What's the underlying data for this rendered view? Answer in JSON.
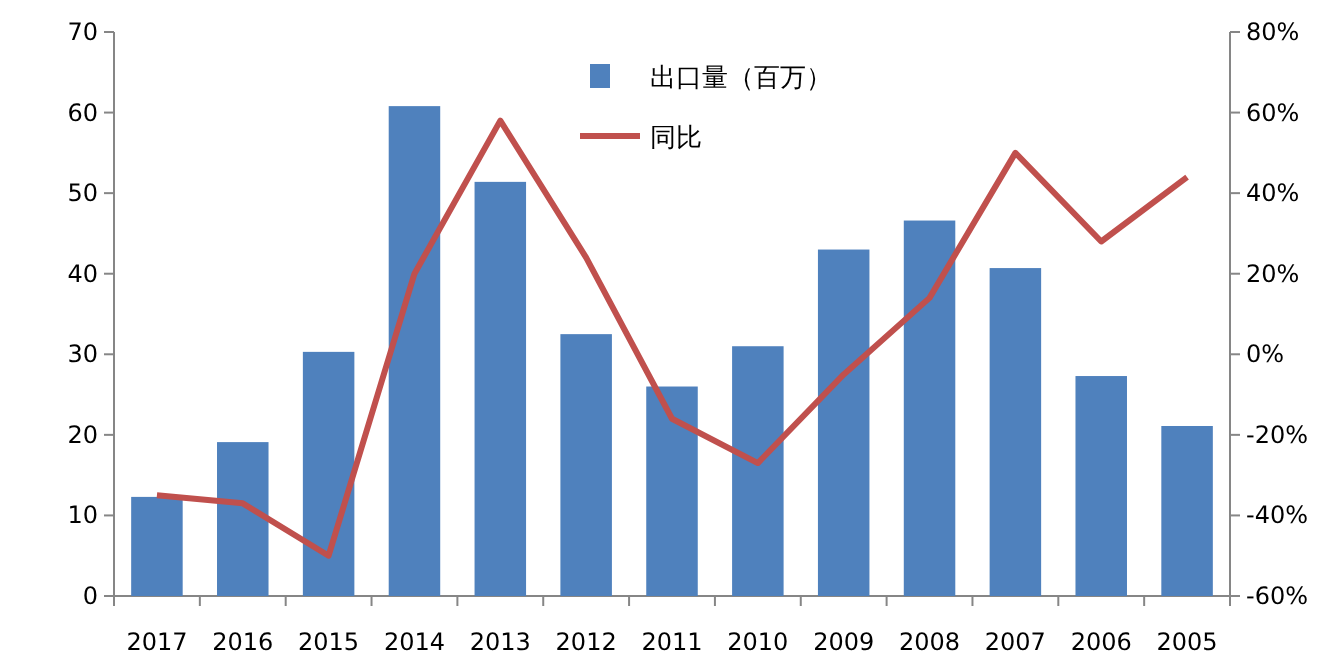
{
  "chart_data": {
    "type": "bar",
    "categories": [
      "2017",
      "2016",
      "2015",
      "2014",
      "2013",
      "2012",
      "2011",
      "2010",
      "2009",
      "2008",
      "2007",
      "2006",
      "2005"
    ],
    "series": [
      {
        "name": "出口量（百万）",
        "color": "#4f81bd",
        "values": [
          12.3,
          19.1,
          30.3,
          60.8,
          51.4,
          32.5,
          26,
          31,
          43,
          46.6,
          40.7,
          27.3,
          21.1
        ]
      },
      {
        "name": "同比",
        "type": "line",
        "axis": "y2",
        "color": "#c0504d",
        "values": [
          -35,
          -37,
          -50,
          20,
          58,
          24,
          -16,
          -27,
          -5,
          14,
          50,
          28,
          44
        ]
      }
    ],
    "ylim": [
      0,
      70
    ],
    "yticks": [
      0,
      10,
      20,
      30,
      40,
      50,
      60,
      70
    ],
    "y2lim": [
      -60,
      80
    ],
    "y2ticks": [
      {
        "value": -60,
        "label": "-60%"
      },
      {
        "value": -40,
        "label": "-40%"
      },
      {
        "value": -20,
        "label": "-20%"
      },
      {
        "value": 0,
        "label": "0%"
      },
      {
        "value": 20,
        "label": "20%"
      },
      {
        "value": 40,
        "label": "40%"
      },
      {
        "value": 60,
        "label": "60%"
      },
      {
        "value": 80,
        "label": "80%"
      }
    ],
    "legend": "top",
    "grid": false
  }
}
